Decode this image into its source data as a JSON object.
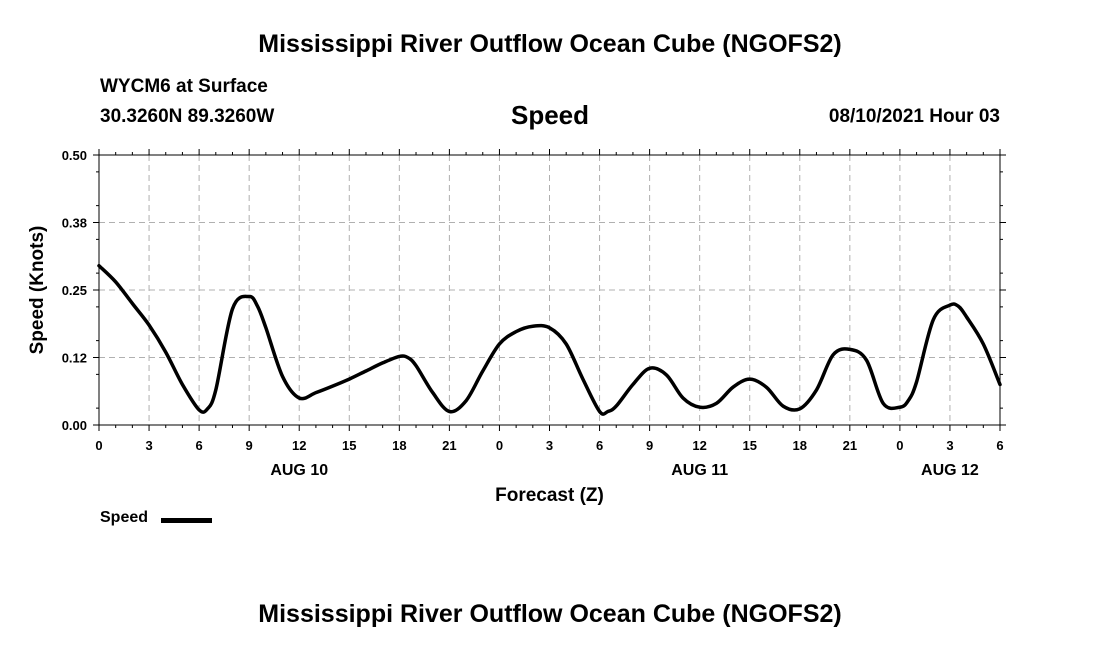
{
  "header": {
    "title": "Mississippi River Outflow Ocean Cube (NGOFS2)",
    "station": "WYCM6 at Surface",
    "coordinates": "30.3260N  89.3260W",
    "variable": "Speed",
    "timestamp": "08/10/2021 Hour 03"
  },
  "footer": {
    "title": "Mississippi River Outflow Ocean Cube (NGOFS2)"
  },
  "legend": {
    "label": "Speed"
  },
  "chart_data": {
    "type": "line",
    "title": "Speed",
    "xlabel": "Forecast (Z)",
    "ylabel": "Speed (Knots)",
    "xlim": [
      0,
      54
    ],
    "ylim": [
      0,
      0.5
    ],
    "grid": true,
    "legend_position": "bottom-left",
    "y_ticks": [
      "0.00",
      "0.12",
      "0.25",
      "0.38",
      "0.50"
    ],
    "x_ticks": [
      "0",
      "3",
      "6",
      "9",
      "12",
      "15",
      "18",
      "21",
      "0",
      "3",
      "6",
      "9",
      "12",
      "15",
      "18",
      "21",
      "0",
      "3",
      "6"
    ],
    "date_labels": [
      {
        "label": "AUG 10",
        "hour": 12
      },
      {
        "label": "AUG 11",
        "hour": 36
      },
      {
        "label": "AUG 12",
        "hour": 51
      }
    ],
    "series": [
      {
        "name": "Speed",
        "color": "#000000",
        "x": [
          0,
          1,
          2,
          3,
          4,
          5,
          6,
          6.5,
          7,
          8,
          9,
          9.5,
          10,
          11,
          12,
          13,
          14,
          15,
          16,
          17,
          18,
          18.5,
          19,
          20,
          21,
          22,
          23,
          24,
          25,
          26,
          27,
          28,
          29,
          30,
          30.5,
          31,
          32,
          33,
          34,
          35,
          36,
          37,
          38,
          39,
          40,
          41,
          42,
          43,
          44,
          45,
          46,
          47,
          48,
          48.5,
          49,
          50,
          51,
          51.5,
          52,
          53,
          54
        ],
        "y": [
          0.295,
          0.265,
          0.225,
          0.185,
          0.135,
          0.075,
          0.028,
          0.03,
          0.065,
          0.215,
          0.238,
          0.22,
          0.18,
          0.09,
          0.05,
          0.06,
          0.072,
          0.085,
          0.1,
          0.115,
          0.127,
          0.125,
          0.11,
          0.06,
          0.025,
          0.045,
          0.1,
          0.15,
          0.173,
          0.183,
          0.18,
          0.15,
          0.085,
          0.025,
          0.025,
          0.035,
          0.075,
          0.105,
          0.093,
          0.05,
          0.033,
          0.04,
          0.07,
          0.085,
          0.07,
          0.035,
          0.03,
          0.065,
          0.13,
          0.14,
          0.12,
          0.04,
          0.033,
          0.045,
          0.08,
          0.195,
          0.222,
          0.22,
          0.2,
          0.15,
          0.075
        ]
      }
    ]
  }
}
